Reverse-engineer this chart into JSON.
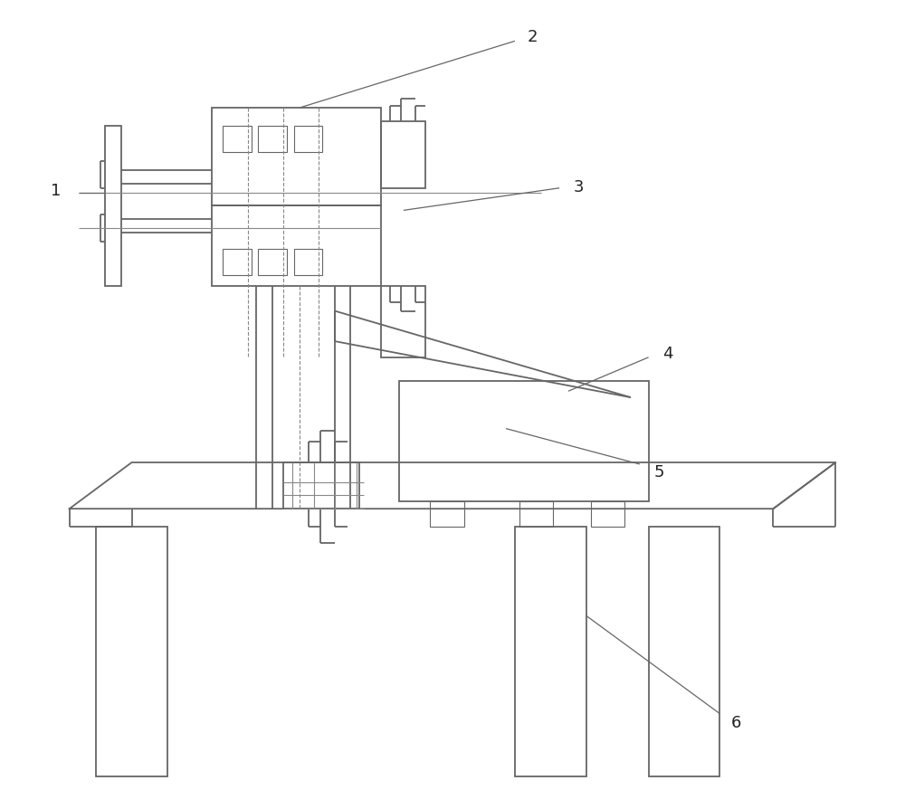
{
  "bg_color": "#ffffff",
  "lc": "#666666",
  "lc2": "#888888",
  "lw": 1.3,
  "lw_thin": 0.8,
  "fig_width": 10.0,
  "fig_height": 8.95,
  "label_fs": 13,
  "label_color": "#222222"
}
